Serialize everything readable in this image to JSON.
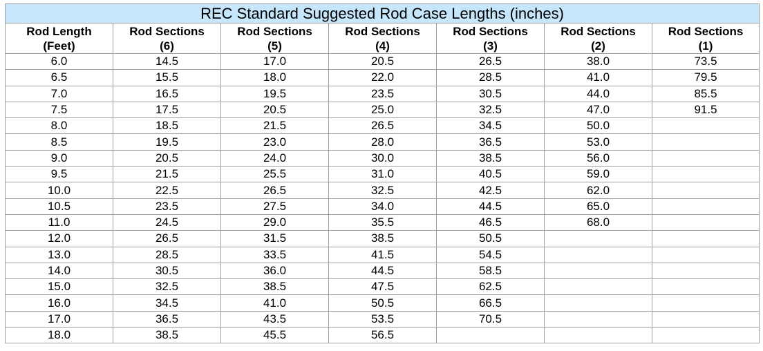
{
  "title": "REC Standard Suggested Rod Case Lengths (inches)",
  "headers": [
    {
      "line1": "Rod Length",
      "line2": "(Feet)"
    },
    {
      "line1": "Rod Sections",
      "line2": "(6)"
    },
    {
      "line1": "Rod Sections",
      "line2": "(5)"
    },
    {
      "line1": "Rod Sections",
      "line2": "(4)"
    },
    {
      "line1": "Rod Sections",
      "line2": "(3)"
    },
    {
      "line1": "Rod Sections",
      "line2": "(2)"
    },
    {
      "line1": "Rod Sections",
      "line2": "(1)"
    }
  ],
  "rows": [
    [
      "6.0",
      "14.5",
      "17.0",
      "20.5",
      "26.5",
      "38.0",
      "73.5"
    ],
    [
      "6.5",
      "15.5",
      "18.0",
      "22.0",
      "28.5",
      "41.0",
      "79.5"
    ],
    [
      "7.0",
      "16.5",
      "19.5",
      "23.5",
      "30.5",
      "44.0",
      "85.5"
    ],
    [
      "7.5",
      "17.5",
      "20.5",
      "25.0",
      "32.5",
      "47.0",
      "91.5"
    ],
    [
      "8.0",
      "18.5",
      "21.5",
      "26.5",
      "34.5",
      "50.0",
      ""
    ],
    [
      "8.5",
      "19.5",
      "23.0",
      "28.0",
      "36.5",
      "53.0",
      ""
    ],
    [
      "9.0",
      "20.5",
      "24.0",
      "30.0",
      "38.5",
      "56.0",
      ""
    ],
    [
      "9.5",
      "21.5",
      "25.5",
      "31.0",
      "40.5",
      "59.0",
      ""
    ],
    [
      "10.0",
      "22.5",
      "26.5",
      "32.5",
      "42.5",
      "62.0",
      ""
    ],
    [
      "10.5",
      "23.5",
      "27.5",
      "34.0",
      "44.5",
      "65.0",
      ""
    ],
    [
      "11.0",
      "24.5",
      "29.0",
      "35.5",
      "46.5",
      "68.0",
      ""
    ],
    [
      "12.0",
      "26.5",
      "31.5",
      "38.5",
      "50.5",
      "",
      ""
    ],
    [
      "13.0",
      "28.5",
      "33.5",
      "41.5",
      "54.5",
      "",
      ""
    ],
    [
      "14.0",
      "30.5",
      "36.0",
      "44.5",
      "58.5",
      "",
      ""
    ],
    [
      "15.0",
      "32.5",
      "38.5",
      "47.5",
      "62.5",
      "",
      ""
    ],
    [
      "16.0",
      "34.5",
      "41.0",
      "50.5",
      "66.5",
      "",
      ""
    ],
    [
      "17.0",
      "36.5",
      "43.5",
      "53.5",
      "70.5",
      "",
      ""
    ],
    [
      "18.0",
      "38.5",
      "45.5",
      "56.5",
      "",
      "",
      ""
    ]
  ],
  "colors": {
    "title_background": "#c6e6fb",
    "grid_border": "#9e9e9e"
  }
}
